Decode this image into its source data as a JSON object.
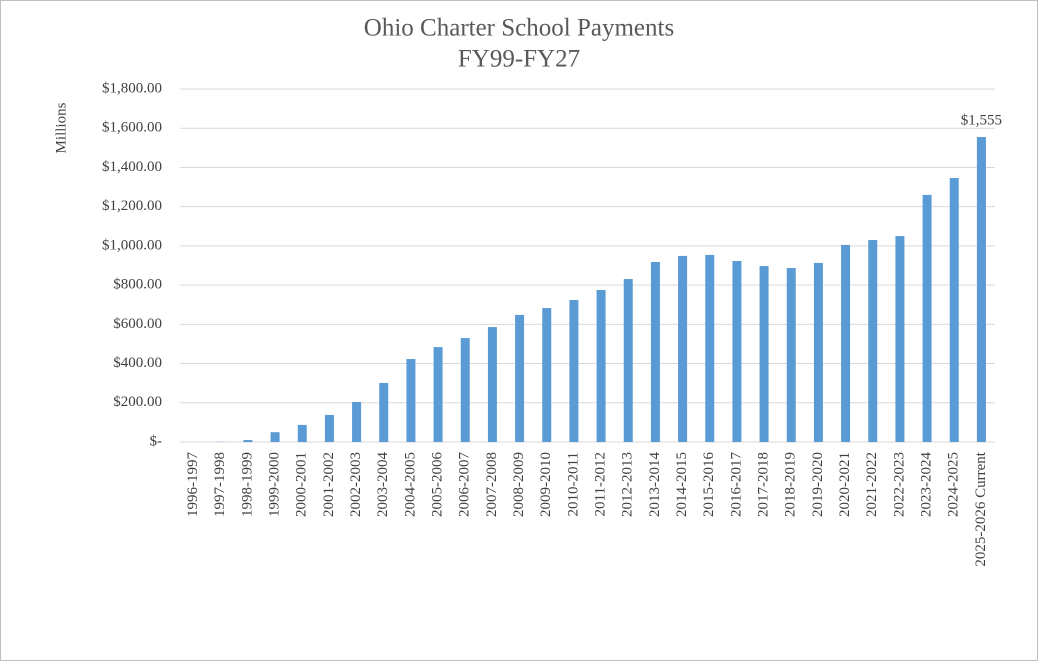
{
  "chart_data": {
    "type": "bar",
    "title": "Ohio Charter School Payments",
    "subtitle": "FY99-FY27",
    "y_label": "Millions",
    "categories": [
      "1996-1997",
      "1997-1998",
      "1998-1999",
      "1999-2000",
      "2000-2001",
      "2001-2002",
      "2002-2003",
      "2003-2004",
      "2004-2005",
      "2005-2006",
      "2006-2007",
      "2007-2008",
      "2008-2009",
      "2009-2010",
      "2010-2011",
      "2011-2012",
      "2012-2013",
      "2013-2014",
      "2014-2015",
      "2015-2016",
      "2016-2017",
      "2017-2018",
      "2018-2019",
      "2019-2020",
      "2020-2021",
      "2021-2022",
      "2022-2023",
      "2023-2024",
      "2024-2025",
      "2025-2026 Current"
    ],
    "values": [
      0,
      1,
      10,
      50,
      87,
      138,
      204,
      301,
      423,
      484,
      530,
      586,
      648,
      683,
      724,
      775,
      831,
      918,
      949,
      954,
      923,
      897,
      887,
      913,
      1005,
      1030,
      1050,
      1260,
      1346,
      1555
    ],
    "value_labels": [
      null,
      null,
      null,
      null,
      null,
      null,
      null,
      null,
      null,
      null,
      null,
      null,
      null,
      null,
      null,
      null,
      null,
      null,
      null,
      null,
      null,
      null,
      null,
      null,
      null,
      null,
      null,
      null,
      null,
      "$1,555"
    ],
    "color": "#5b9bd5",
    "ylim": [
      0,
      1800
    ],
    "yticks": [
      {
        "value": 0,
        "label": "$-"
      },
      {
        "value": 200,
        "label": "$200.00"
      },
      {
        "value": 400,
        "label": "$400.00"
      },
      {
        "value": 600,
        "label": "$600.00"
      },
      {
        "value": 800,
        "label": "$800.00"
      },
      {
        "value": 1000,
        "label": "$1,000.00"
      },
      {
        "value": 1200,
        "label": "$1,200.00"
      },
      {
        "value": 1400,
        "label": "$1,400.00"
      },
      {
        "value": 1600,
        "label": "$1,600.00"
      },
      {
        "value": 1800,
        "label": "$1,800.00"
      }
    ],
    "grid": true
  }
}
